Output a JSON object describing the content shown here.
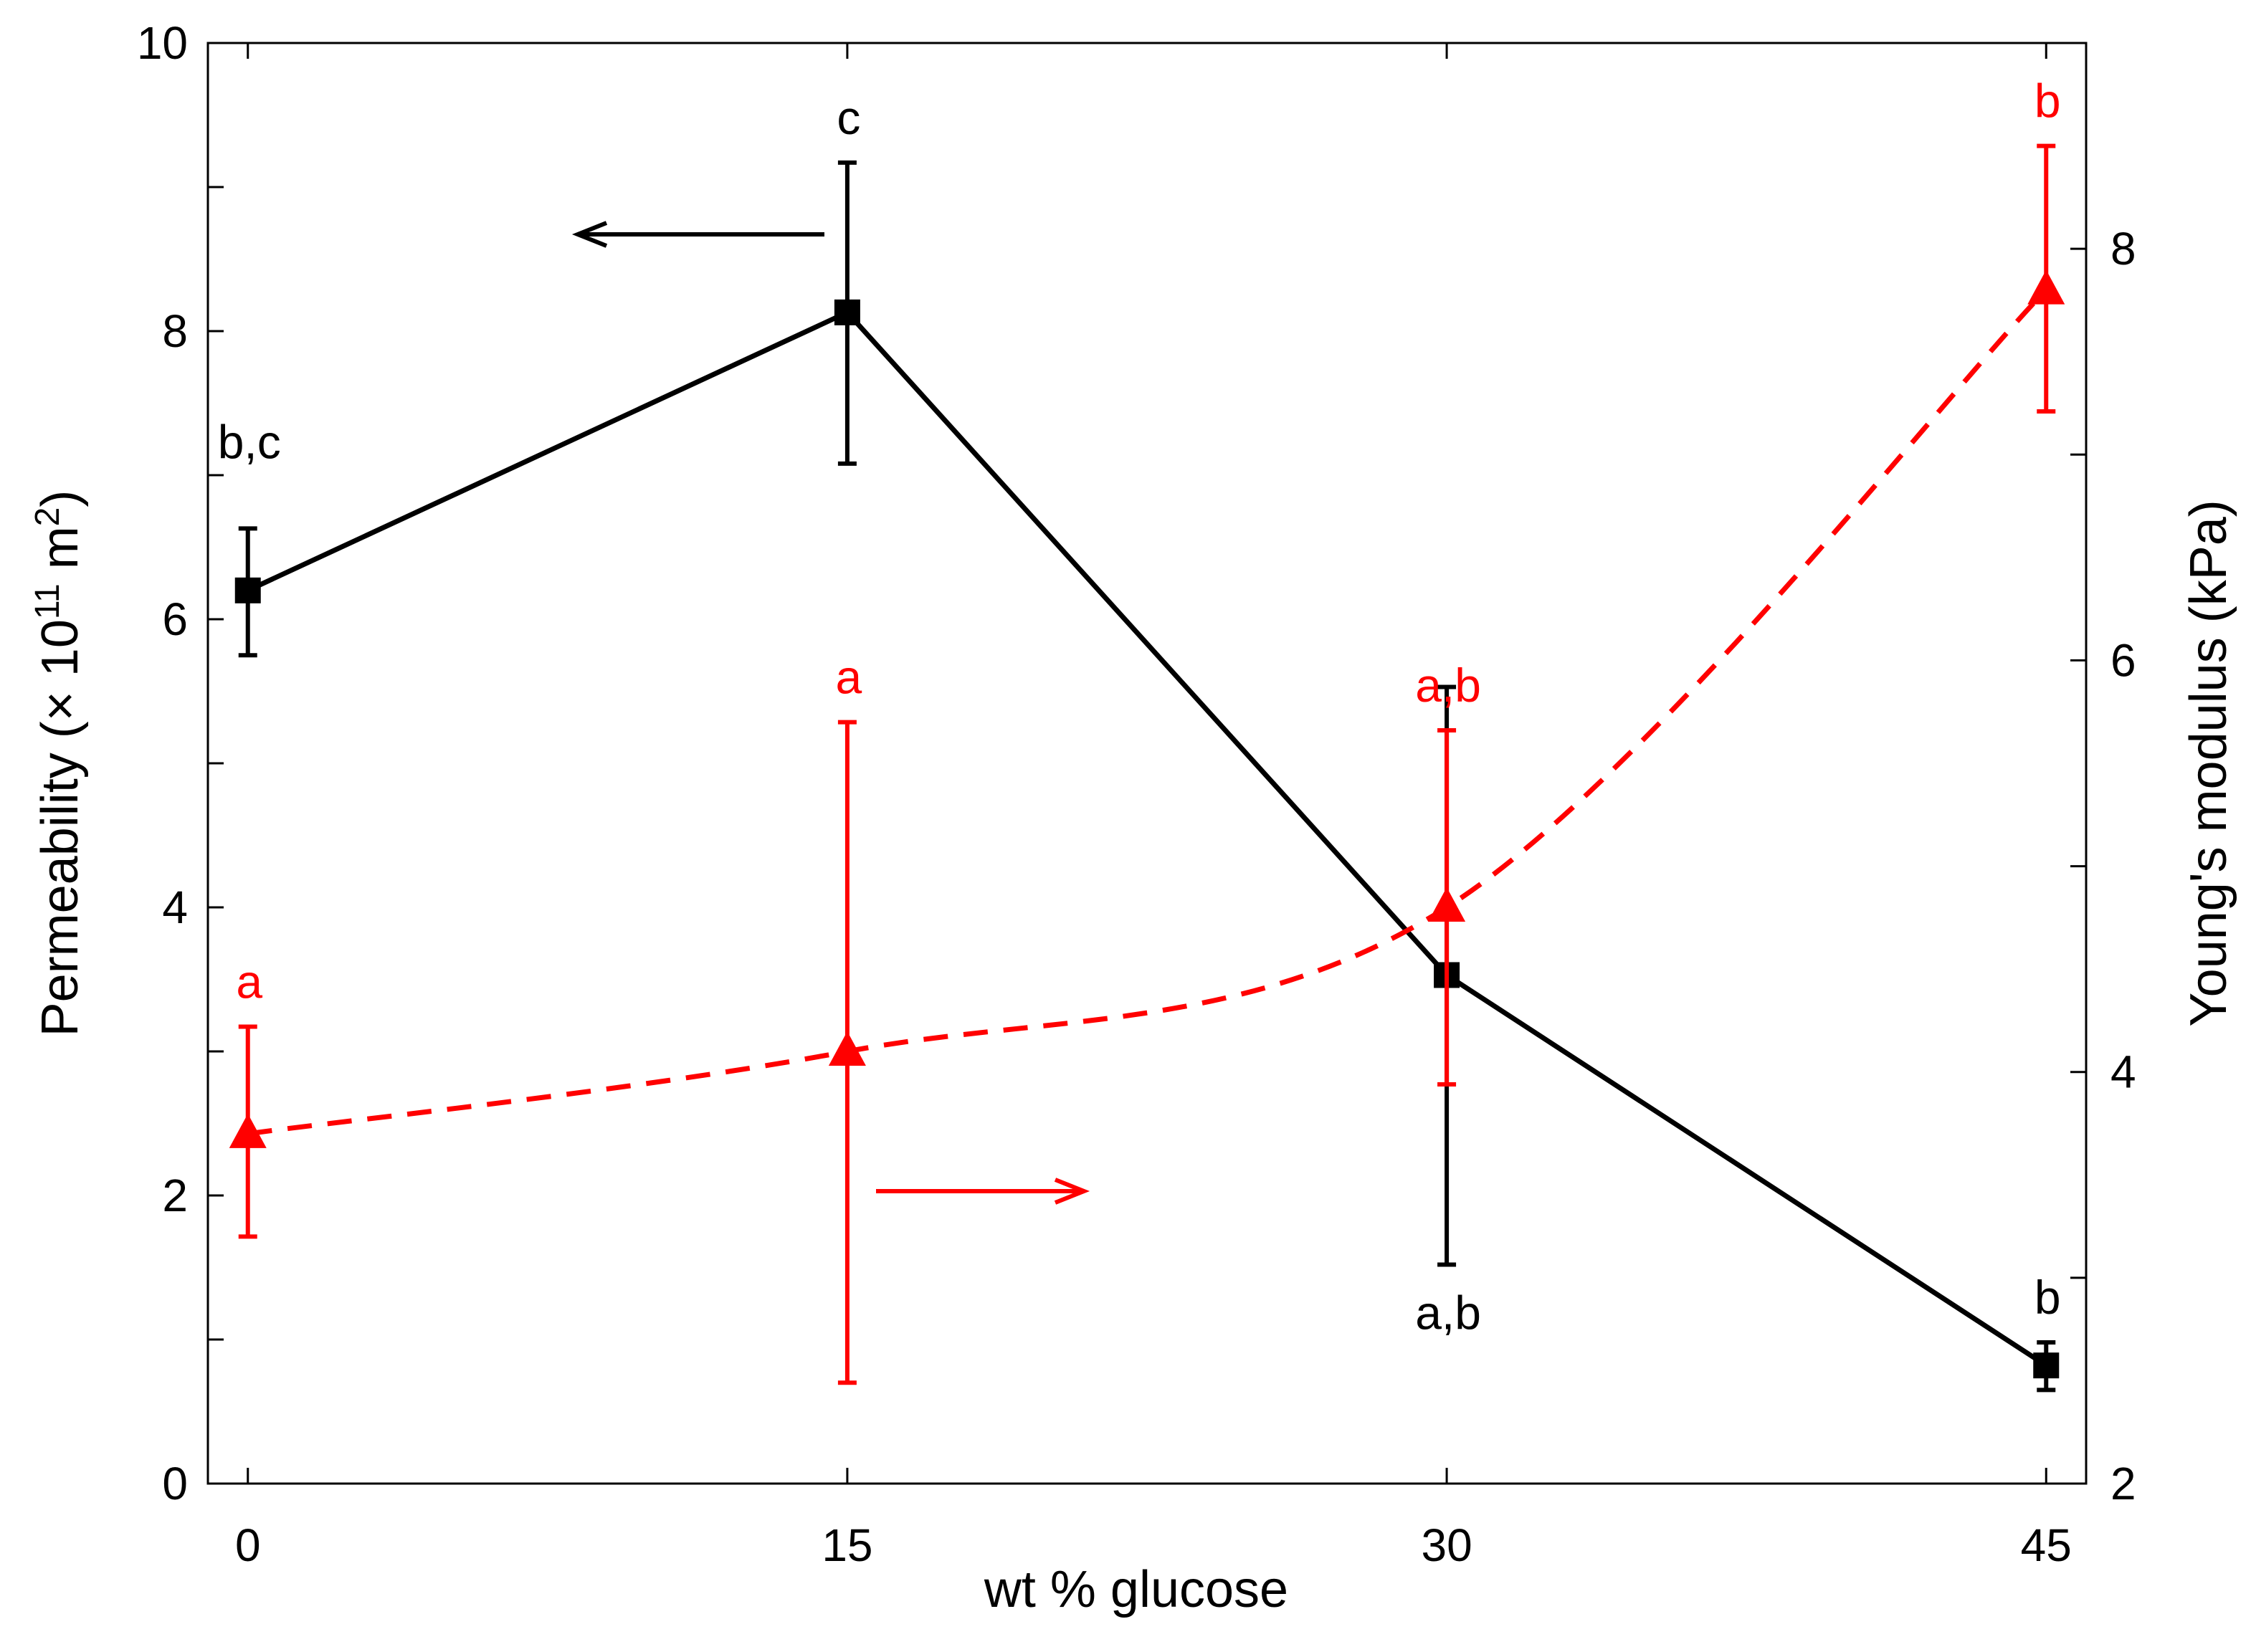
{
  "chart_data": {
    "type": "line",
    "title": "",
    "xlabel": "wt % glucose",
    "ylabel": "Permeability (× 10",
    "ylabel_sup": "11",
    "ylabel_unit": " m",
    "ylabel_unit_sup": "2",
    "ylabel_close": ")",
    "y2label": "Young's modulus (kPa)",
    "xlim": [
      -1.0,
      46.0
    ],
    "ylim": [
      0,
      10
    ],
    "y2lim": [
      2,
      9
    ],
    "x": [
      0,
      15,
      30,
      45
    ],
    "x_ticks": [
      "0",
      "15",
      "30",
      "45"
    ],
    "y_ticks": [
      "0",
      "2",
      "4",
      "6",
      "8",
      "10"
    ],
    "y2_ticks": [
      "2",
      "4",
      "6",
      "8"
    ],
    "grid": false,
    "series": [
      {
        "axis": "left",
        "color": "#000000",
        "marker": "square",
        "line": "solid",
        "values": [
          6.2,
          8.13,
          3.53,
          0.82
        ],
        "err_low": [
          5.75,
          7.08,
          1.52,
          0.65
        ],
        "err_high": [
          6.63,
          9.17,
          5.53,
          0.98
        ],
        "letters": [
          "b,c",
          "c",
          "a,b",
          "b"
        ]
      },
      {
        "axis": "right",
        "color": "#ff0000",
        "marker": "triangle",
        "line": "dashed",
        "values": [
          3.7,
          4.1,
          4.8,
          7.8
        ],
        "err_low": [
          3.2,
          2.49,
          3.94,
          7.21
        ],
        "err_high": [
          4.22,
          5.7,
          5.66,
          8.5
        ],
        "letters": [
          "a",
          "a",
          "a,b",
          "b"
        ]
      }
    ],
    "annotations": [
      {
        "type": "arrow",
        "direction": "left",
        "color": "#000000",
        "meaning": "left axis"
      },
      {
        "type": "arrow",
        "direction": "right",
        "color": "#ff0000",
        "meaning": "right axis"
      }
    ]
  }
}
